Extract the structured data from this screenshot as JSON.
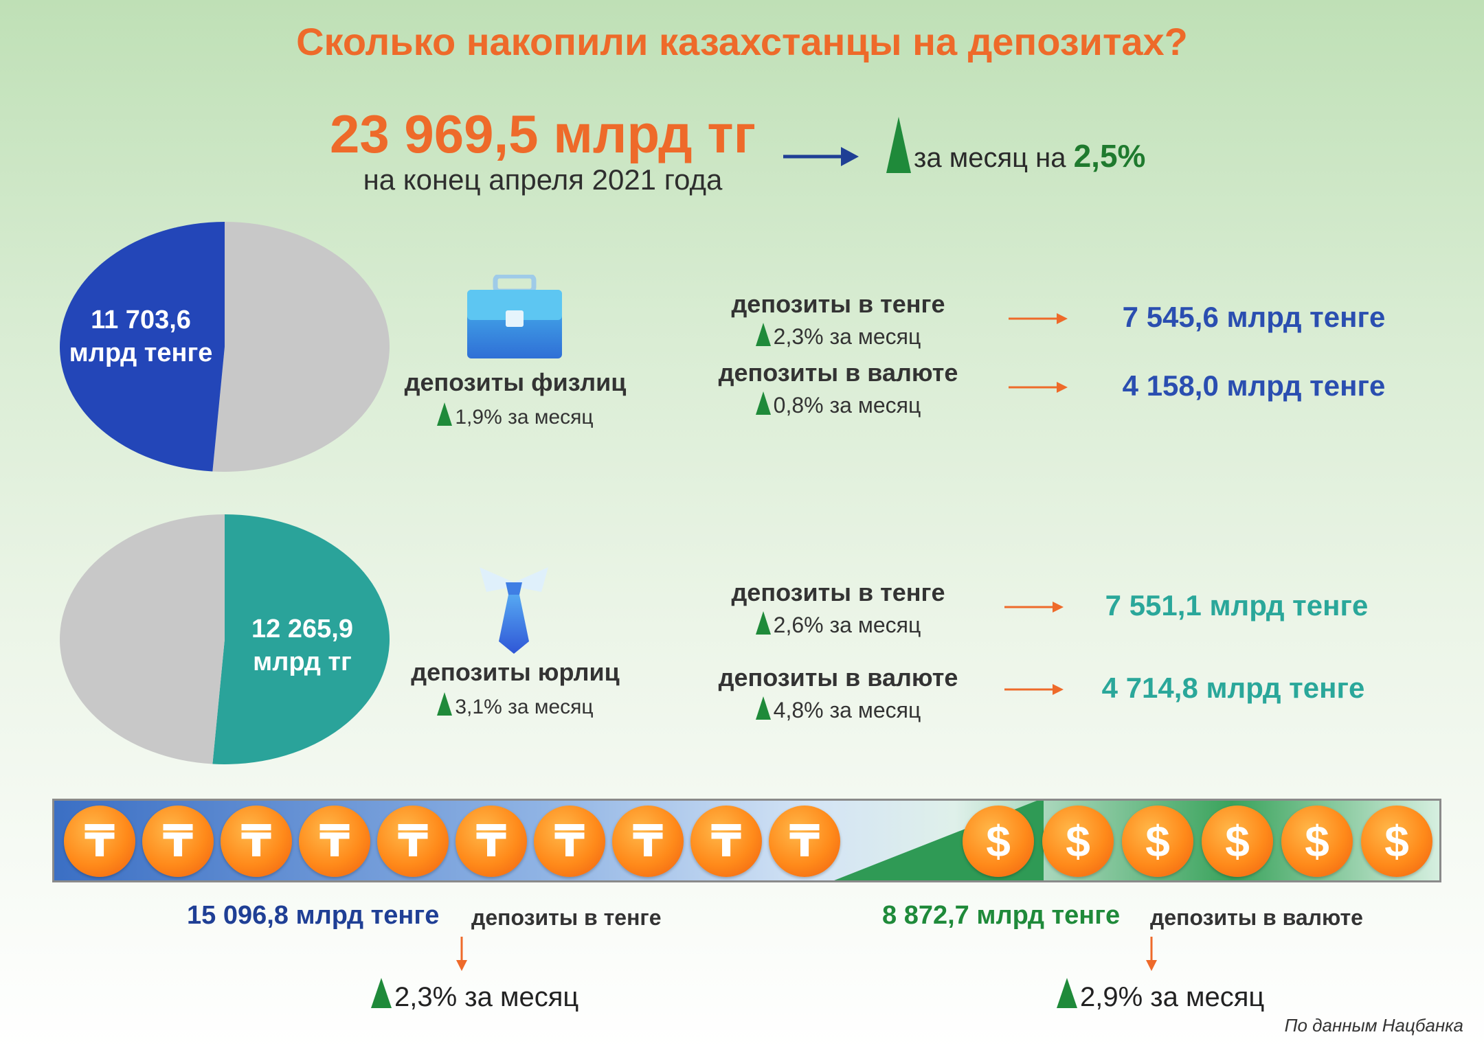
{
  "title": "Сколько накопили казахстанцы на депозитах?",
  "total": {
    "value": "23 969,5 млрд тг",
    "date": "на конец апреля 2021 года",
    "month_prefix": "за месяц на",
    "month_change": "2,5%"
  },
  "individuals": {
    "pie_value_line1": "11 703,6",
    "pie_value_line2": "млрд тенге",
    "label": "депозиты физлиц",
    "month": "1,9% за месяц",
    "tenge_label": "депозиты в тенге",
    "tenge_month": "2,3% за месяц",
    "tenge_value": "7 545,6 млрд тенге",
    "fx_label": "депозиты в валюте",
    "fx_month": "0,8% за месяц",
    "fx_value": "4 158,0 млрд тенге"
  },
  "legal": {
    "pie_value_line1": "12 265,9",
    "pie_value_line2": "млрд тг",
    "label": "депозиты юрлиц",
    "month": "3,1% за месяц",
    "tenge_label": "депозиты в тенге",
    "tenge_month": "2,6% за месяц",
    "tenge_value": "7 551,1 млрд тенге",
    "fx_label": "депозиты в валюте",
    "fx_month": "4,8% за месяц",
    "fx_value": "4 714,8 млрд тенге"
  },
  "bottom": {
    "tenge_value": "15 096,8 млрд тенге",
    "tenge_label": "депозиты в тенге",
    "tenge_month": "2,3% за месяц",
    "fx_value": "8 872,7 млрд тенге",
    "fx_label": "депозиты в валюте",
    "fx_month": "2,9% за месяц",
    "tenge_coin_symbol": "₸",
    "dollar_coin_symbol": "$"
  },
  "source": "По данным Нацбанка",
  "colors": {
    "accent_orange": "#ee6a2a",
    "individuals_blue": "#2346b8",
    "legal_teal": "#2aa39a",
    "pie_grey": "#c8c8c8",
    "growth_green": "#1f8a3a"
  },
  "chart_data": [
    {
      "type": "pie",
      "slices": [
        {
          "label": "депозиты физлиц",
          "value": 11703.6
        },
        {
          "label": "депозиты юрлиц",
          "value": 12265.9
        }
      ],
      "highlight": "депозиты физлиц"
    },
    {
      "type": "pie",
      "slices": [
        {
          "label": "депозиты физлиц",
          "value": 11703.6
        },
        {
          "label": "депозиты юрлиц",
          "value": 12265.9
        }
      ],
      "highlight": "депозиты юрлиц"
    }
  ]
}
